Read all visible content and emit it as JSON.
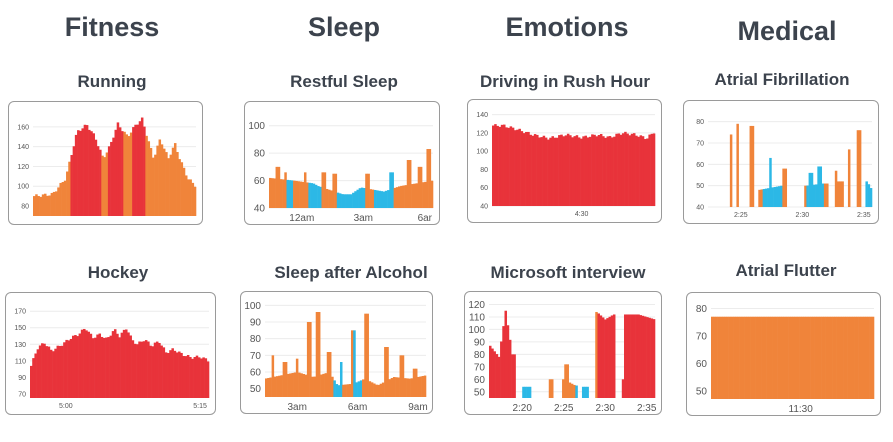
{
  "columns": [
    {
      "title": "Fitness",
      "cx": 112
    },
    {
      "title": "Sleep",
      "cx": 344
    },
    {
      "title": "Emotions",
      "cx": 567
    },
    {
      "title": "Medical",
      "cx": 787
    }
  ],
  "colors": {
    "red": "#e8333a",
    "orange": "#f0843a",
    "blue": "#2cb8e6",
    "frame": "#9a9a9a"
  },
  "chart_data": [
    {
      "type": "bar",
      "title": "Running",
      "yticks": [
        80,
        100,
        120,
        140,
        160
      ],
      "xticks": [],
      "ylim": [
        70,
        175
      ],
      "profile": [
        [
          0,
          90
        ],
        [
          0.12,
          92
        ],
        [
          0.2,
          108
        ],
        [
          0.27,
          155
        ],
        [
          0.33,
          162
        ],
        [
          0.38,
          150
        ],
        [
          0.43,
          128
        ],
        [
          0.47,
          140
        ],
        [
          0.52,
          163
        ],
        [
          0.58,
          150
        ],
        [
          0.63,
          162
        ],
        [
          0.67,
          168
        ],
        [
          0.7,
          150
        ],
        [
          0.74,
          128
        ],
        [
          0.78,
          148
        ],
        [
          0.83,
          128
        ],
        [
          0.87,
          143
        ],
        [
          0.9,
          128
        ],
        [
          0.95,
          108
        ],
        [
          1,
          100
        ]
      ],
      "color_segments": [
        [
          0,
          0.23,
          "orange"
        ],
        [
          0.23,
          0.42,
          "red"
        ],
        [
          0.42,
          0.46,
          "orange"
        ],
        [
          0.46,
          0.56,
          "red"
        ],
        [
          0.56,
          0.61,
          "orange"
        ],
        [
          0.61,
          0.69,
          "red"
        ],
        [
          0.69,
          1,
          "orange"
        ]
      ]
    },
    {
      "type": "bar",
      "title": "Restful Sleep",
      "yticks": [
        40,
        60,
        80,
        100
      ],
      "xticks": [
        "12am",
        "3am",
        "6ar"
      ],
      "ylim": [
        40,
        110
      ],
      "profile": [
        [
          0,
          62
        ],
        [
          0.15,
          60
        ],
        [
          0.27,
          58
        ],
        [
          0.3,
          56
        ],
        [
          0.45,
          50
        ],
        [
          0.5,
          50
        ],
        [
          0.56,
          55
        ],
        [
          0.7,
          52
        ],
        [
          0.8,
          56
        ],
        [
          0.9,
          58
        ],
        [
          1,
          60
        ]
      ],
      "spikes": [
        [
          0.05,
          70
        ],
        [
          0.1,
          66
        ],
        [
          0.22,
          66
        ],
        [
          0.33,
          66
        ],
        [
          0.4,
          65
        ],
        [
          0.6,
          65
        ],
        [
          0.75,
          66
        ],
        [
          0.85,
          75
        ],
        [
          0.92,
          70
        ],
        [
          0.97,
          83
        ]
      ],
      "color_segments": [
        [
          0,
          0.1,
          "orange"
        ],
        [
          0.1,
          0.14,
          "blue"
        ],
        [
          0.14,
          0.24,
          "orange"
        ],
        [
          0.24,
          0.32,
          "blue"
        ],
        [
          0.32,
          0.41,
          "orange"
        ],
        [
          0.41,
          0.58,
          "blue"
        ],
        [
          0.58,
          0.64,
          "orange"
        ],
        [
          0.64,
          0.76,
          "blue"
        ],
        [
          0.76,
          1,
          "orange"
        ]
      ]
    },
    {
      "type": "bar",
      "title": "Driving in Rush Hour",
      "yticks": [
        40,
        60,
        80,
        100,
        120,
        140
      ],
      "xticks": [
        "4:30"
      ],
      "ylim": [
        40,
        145
      ],
      "profile": [
        [
          0,
          128
        ],
        [
          0.07,
          128
        ],
        [
          0.15,
          124
        ],
        [
          0.25,
          118
        ],
        [
          0.35,
          114
        ],
        [
          0.45,
          118
        ],
        [
          0.55,
          115
        ],
        [
          0.65,
          118
        ],
        [
          0.72,
          115
        ],
        [
          0.8,
          120
        ],
        [
          0.88,
          118
        ],
        [
          0.95,
          114
        ],
        [
          1,
          122
        ]
      ],
      "color_segments": [
        [
          0,
          1,
          "red"
        ]
      ]
    },
    {
      "type": "bar",
      "title": "Atrial Fibrillation",
      "yticks": [
        40,
        50,
        60,
        70,
        80
      ],
      "xticks": [
        "2:25",
        "2:30",
        "2:35"
      ],
      "ylim": [
        40,
        85
      ],
      "profile": [
        [
          0,
          0
        ],
        [
          0.3,
          0
        ],
        [
          0.31,
          48
        ],
        [
          0.45,
          50
        ],
        [
          0.5,
          0
        ],
        [
          0.58,
          0
        ],
        [
          0.6,
          50
        ],
        [
          0.7,
          51
        ],
        [
          0.76,
          0
        ],
        [
          0.8,
          52
        ],
        [
          0.85,
          0
        ],
        [
          0.96,
          0
        ],
        [
          0.97,
          52
        ],
        [
          1,
          48
        ]
      ],
      "spikes": [
        [
          0.14,
          74
        ],
        [
          0.18,
          79
        ],
        [
          0.27,
          78
        ],
        [
          0.38,
          63
        ],
        [
          0.47,
          58
        ],
        [
          0.63,
          56
        ],
        [
          0.68,
          59
        ],
        [
          0.78,
          57
        ],
        [
          0.86,
          67
        ],
        [
          0.92,
          76
        ]
      ],
      "color_segments": [
        [
          0,
          0.33,
          "orange"
        ],
        [
          0.33,
          0.45,
          "blue"
        ],
        [
          0.45,
          0.6,
          "orange"
        ],
        [
          0.6,
          0.7,
          "blue"
        ],
        [
          0.7,
          0.96,
          "orange"
        ],
        [
          0.96,
          1,
          "blue"
        ]
      ]
    },
    {
      "type": "bar",
      "title": "Hockey",
      "yticks": [
        70,
        90,
        110,
        130,
        150,
        170
      ],
      "xticks": [
        "5:00",
        "5:15"
      ],
      "ylim": [
        65,
        180
      ],
      "profile": [
        [
          0,
          100
        ],
        [
          0.04,
          125
        ],
        [
          0.08,
          132
        ],
        [
          0.12,
          122
        ],
        [
          0.18,
          130
        ],
        [
          0.23,
          138
        ],
        [
          0.27,
          142
        ],
        [
          0.31,
          150
        ],
        [
          0.35,
          138
        ],
        [
          0.39,
          142
        ],
        [
          0.43,
          136
        ],
        [
          0.47,
          148
        ],
        [
          0.5,
          140
        ],
        [
          0.54,
          150
        ],
        [
          0.57,
          135
        ],
        [
          0.6,
          130
        ],
        [
          0.64,
          136
        ],
        [
          0.68,
          128
        ],
        [
          0.72,
          134
        ],
        [
          0.76,
          120
        ],
        [
          0.8,
          124
        ],
        [
          0.85,
          118
        ],
        [
          0.9,
          114
        ],
        [
          0.95,
          115
        ],
        [
          1,
          110
        ]
      ],
      "color_segments": [
        [
          0,
          1,
          "red"
        ]
      ]
    },
    {
      "type": "bar",
      "title": "Sleep after Alcohol",
      "yticks": [
        50,
        60,
        70,
        80,
        90,
        100
      ],
      "xticks": [
        "3am",
        "6am",
        "9am"
      ],
      "ylim": [
        45,
        102
      ],
      "profile": [
        [
          0,
          56
        ],
        [
          0.1,
          58
        ],
        [
          0.2,
          60
        ],
        [
          0.3,
          57
        ],
        [
          0.4,
          60
        ],
        [
          0.45,
          52
        ],
        [
          0.55,
          53
        ],
        [
          0.62,
          56
        ],
        [
          0.7,
          52
        ],
        [
          0.8,
          57
        ],
        [
          0.9,
          56
        ],
        [
          1,
          58
        ]
      ],
      "spikes": [
        [
          0.05,
          70
        ],
        [
          0.12,
          66
        ],
        [
          0.2,
          68
        ],
        [
          0.27,
          90
        ],
        [
          0.33,
          96
        ],
        [
          0.4,
          72
        ],
        [
          0.47,
          66
        ],
        [
          0.55,
          85
        ],
        [
          0.63,
          95
        ],
        [
          0.75,
          75
        ],
        [
          0.85,
          70
        ],
        [
          0.93,
          62
        ]
      ],
      "color_segments": [
        [
          0,
          0.43,
          "orange"
        ],
        [
          0.43,
          0.48,
          "blue"
        ],
        [
          0.48,
          0.55,
          "orange"
        ],
        [
          0.55,
          0.6,
          "blue"
        ],
        [
          0.6,
          1,
          "orange"
        ]
      ]
    },
    {
      "type": "bar",
      "title": "Microsoft interview",
      "yticks": [
        50,
        60,
        70,
        80,
        90,
        100,
        110,
        120
      ],
      "xticks": [
        "2:20",
        "2:25",
        "2:30",
        "2:35"
      ],
      "ylim": [
        45,
        122
      ],
      "profile": [
        [
          0,
          88
        ],
        [
          0.06,
          78
        ],
        [
          0.1,
          115
        ],
        [
          0.14,
          80
        ],
        [
          0.18,
          0
        ],
        [
          0.23,
          54
        ],
        [
          0.27,
          0
        ],
        [
          0.43,
          0
        ],
        [
          0.45,
          60
        ],
        [
          0.52,
          55
        ],
        [
          0.55,
          0
        ],
        [
          0.58,
          54
        ],
        [
          0.62,
          0
        ],
        [
          0.65,
          114
        ],
        [
          0.7,
          108
        ],
        [
          0.75,
          112
        ],
        [
          0.77,
          0
        ],
        [
          0.86,
          112
        ],
        [
          0.9,
          112
        ],
        [
          1,
          108
        ]
      ],
      "spikes": [
        [
          0.37,
          60
        ],
        [
          0.47,
          72
        ],
        [
          0.81,
          60
        ]
      ],
      "color_segments": [
        [
          0,
          0.2,
          "red"
        ],
        [
          0.2,
          0.28,
          "blue"
        ],
        [
          0.28,
          0.52,
          "orange"
        ],
        [
          0.52,
          0.6,
          "blue"
        ],
        [
          0.6,
          0.65,
          "orange"
        ],
        [
          0.65,
          1,
          "red"
        ]
      ]
    },
    {
      "type": "bar",
      "title": "Atrial Flutter",
      "yticks": [
        50,
        60,
        70,
        80
      ],
      "xticks": [
        "11:30"
      ],
      "ylim": [
        47,
        82
      ],
      "profile": [
        [
          0,
          77
        ],
        [
          1,
          77
        ]
      ],
      "color_segments": [
        [
          0,
          1,
          "orange"
        ]
      ]
    }
  ]
}
